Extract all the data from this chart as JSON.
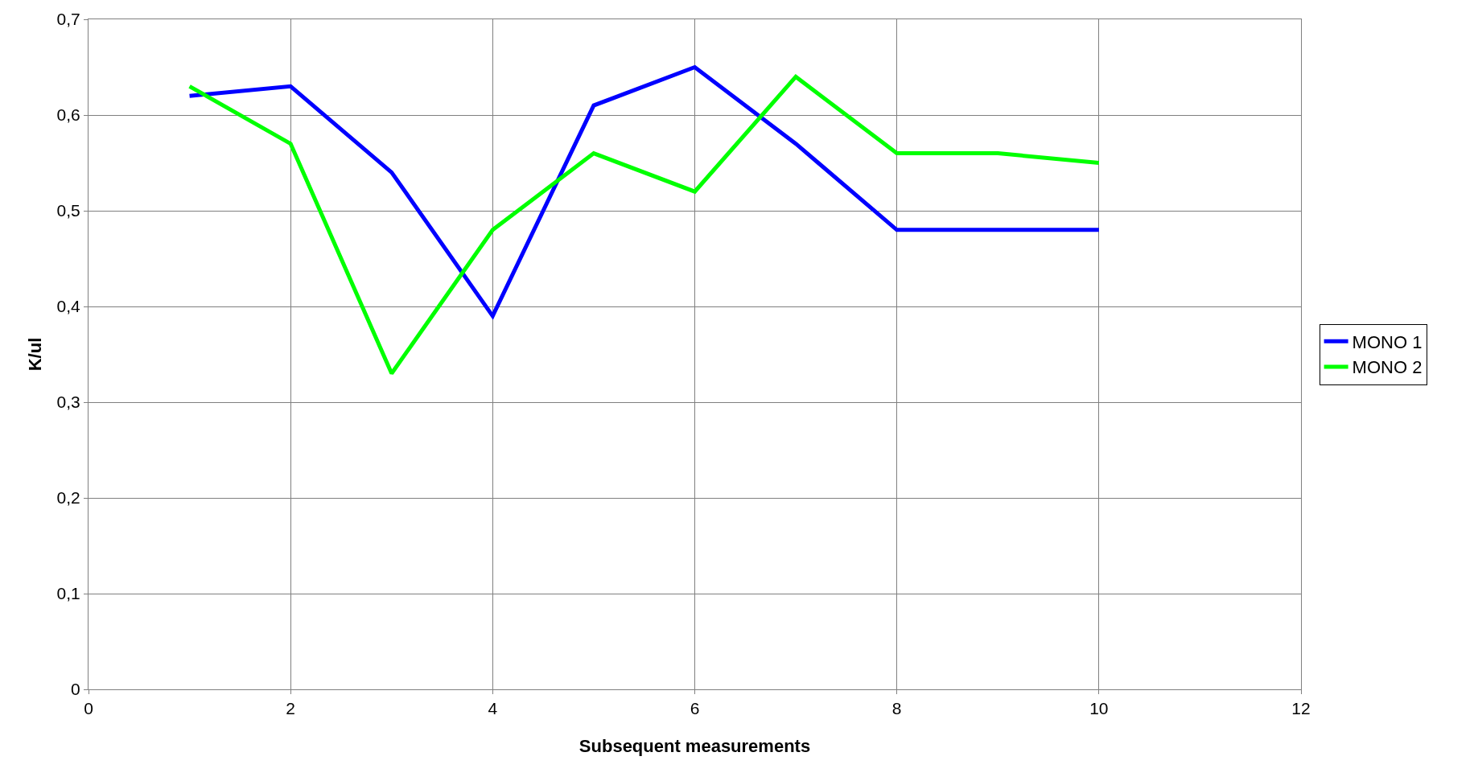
{
  "chart_data": {
    "type": "line",
    "xlabel": "Subsequent measurements",
    "ylabel": "K/ul",
    "x": [
      1,
      2,
      3,
      4,
      5,
      6,
      7,
      8,
      9,
      10
    ],
    "series": [
      {
        "name": "MONO 1",
        "color": "#0000ff",
        "values": [
          0.62,
          0.63,
          0.54,
          0.39,
          0.61,
          0.65,
          0.57,
          0.48,
          0.48,
          0.48
        ]
      },
      {
        "name": "MONO 2",
        "color": "#00ff00",
        "values": [
          0.63,
          0.57,
          0.33,
          0.48,
          0.56,
          0.52,
          0.64,
          0.56,
          0.56,
          0.55
        ]
      }
    ],
    "xlim": [
      0,
      12
    ],
    "xticks": [
      0,
      2,
      4,
      6,
      8,
      10,
      12
    ],
    "ylim": [
      0,
      0.7
    ],
    "yticks": [
      0,
      {
        "value": 0.1,
        "label": "0,1"
      },
      {
        "value": 0.2,
        "label": "0,2"
      },
      {
        "value": 0.3,
        "label": "0,3"
      },
      {
        "value": 0.4,
        "label": "0,4"
      },
      {
        "value": 0.5,
        "label": "0,5"
      },
      {
        "value": 0.6,
        "label": "0,6"
      },
      {
        "value": 0.7,
        "label": "0,7"
      }
    ],
    "grid": true,
    "legend": "right",
    "marker": "none",
    "line_style": "solid"
  }
}
